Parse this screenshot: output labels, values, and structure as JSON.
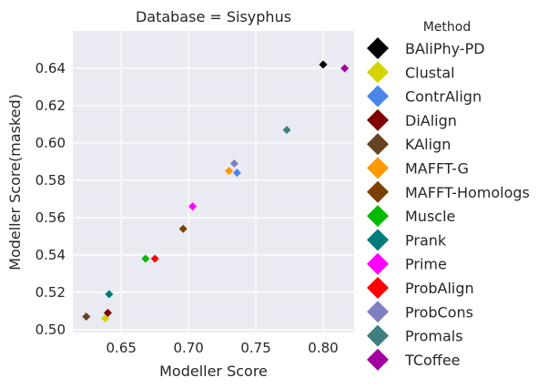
{
  "chart_data": {
    "type": "scatter",
    "title": "Database = Sisyphus",
    "xlabel": "Modeller Score",
    "ylabel": "Modeller Score(masked)",
    "xlim": [
      0.614,
      0.823
    ],
    "ylim": [
      0.4985,
      0.66
    ],
    "xticks": [
      "0.65",
      "0.70",
      "0.75",
      "0.80"
    ],
    "yticks": [
      "0.50",
      "0.52",
      "0.54",
      "0.56",
      "0.58",
      "0.60",
      "0.62",
      "0.64"
    ],
    "grid": true,
    "legend_title": "Method",
    "legend_position": "right",
    "series": [
      {
        "name": "BAliPhy-PD",
        "color": "#000000",
        "points": [
          [
            0.8,
            0.642
          ]
        ]
      },
      {
        "name": "Clustal",
        "color": "#d4d400",
        "points": [
          [
            0.638,
            0.506
          ]
        ]
      },
      {
        "name": "ContrAlign",
        "color": "#4a86e8",
        "points": [
          [
            0.736,
            0.584
          ]
        ]
      },
      {
        "name": "DiAlign",
        "color": "#800000",
        "points": [
          [
            0.64,
            0.509
          ]
        ]
      },
      {
        "name": "KAlign",
        "color": "#654321",
        "points": [
          [
            0.624,
            0.507
          ]
        ]
      },
      {
        "name": "MAFFT-G",
        "color": "#ff9900",
        "points": [
          [
            0.73,
            0.585
          ]
        ]
      },
      {
        "name": "MAFFT-Homologs",
        "color": "#7b3f00",
        "points": [
          [
            0.696,
            0.554
          ]
        ]
      },
      {
        "name": "Muscle",
        "color": "#00bb00",
        "points": [
          [
            0.668,
            0.538
          ]
        ]
      },
      {
        "name": "Prank",
        "color": "#007b7b",
        "points": [
          [
            0.641,
            0.519
          ]
        ]
      },
      {
        "name": "Prime",
        "color": "#ff00ff",
        "points": [
          [
            0.703,
            0.566
          ]
        ]
      },
      {
        "name": "ProbAlign",
        "color": "#ff0000",
        "points": [
          [
            0.675,
            0.538
          ]
        ]
      },
      {
        "name": "ProbCons",
        "color": "#8080c0",
        "points": [
          [
            0.734,
            0.589
          ]
        ]
      },
      {
        "name": "Promals",
        "color": "#3f7f7f",
        "points": [
          [
            0.773,
            0.607
          ]
        ]
      },
      {
        "name": "TCoffee",
        "color": "#a000a0",
        "points": [
          [
            0.816,
            0.64
          ]
        ]
      }
    ]
  }
}
